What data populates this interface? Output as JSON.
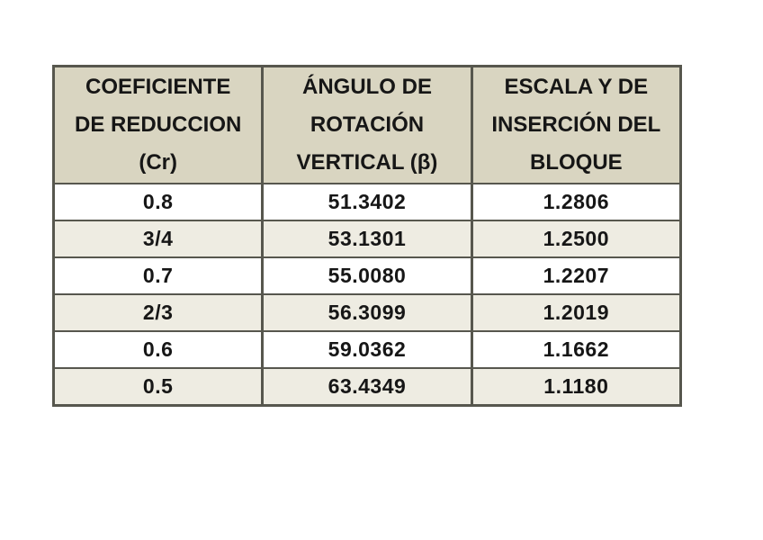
{
  "colors": {
    "page_bg": "#ffffff",
    "header_bg": "#d9d5c1",
    "stripe_bg": "#eeece2",
    "row_bg": "#ffffff",
    "border": "#57574e",
    "text": "#161616"
  },
  "table": {
    "headers": [
      [
        "COEFICIENTE",
        "DE REDUCCION",
        "(Cr)"
      ],
      [
        "ÁNGULO DE",
        "ROTACIÓN",
        "VERTICAL  (β)"
      ],
      [
        "ESCALA Y DE",
        "INSERCIÓN DEL",
        "BLOQUE"
      ]
    ],
    "rows": [
      [
        "0.8",
        "51.3402",
        "1.2806"
      ],
      [
        "3/4",
        "53.1301",
        "1.2500"
      ],
      [
        "0.7",
        "55.0080",
        "1.2207"
      ],
      [
        "2/3",
        "56.3099",
        "1.2019"
      ],
      [
        "0.6",
        "59.0362",
        "1.1662"
      ],
      [
        "0.5",
        "63.4349",
        "1.1180"
      ]
    ]
  },
  "chart_data": {
    "type": "table",
    "title": "",
    "columns": [
      "COEFICIENTE DE REDUCCION (Cr)",
      "ÁNGULO DE ROTACIÓN VERTICAL (β)",
      "ESCALA Y DE INSERCIÓN DEL BLOQUE"
    ],
    "rows": [
      [
        "0.8",
        "51.3402",
        "1.2806"
      ],
      [
        "3/4",
        "53.1301",
        "1.2500"
      ],
      [
        "0.7",
        "55.0080",
        "1.2207"
      ],
      [
        "2/3",
        "56.3099",
        "1.2019"
      ],
      [
        "0.6",
        "59.0362",
        "1.1662"
      ],
      [
        "0.5",
        "63.4349",
        "1.1180"
      ]
    ]
  }
}
